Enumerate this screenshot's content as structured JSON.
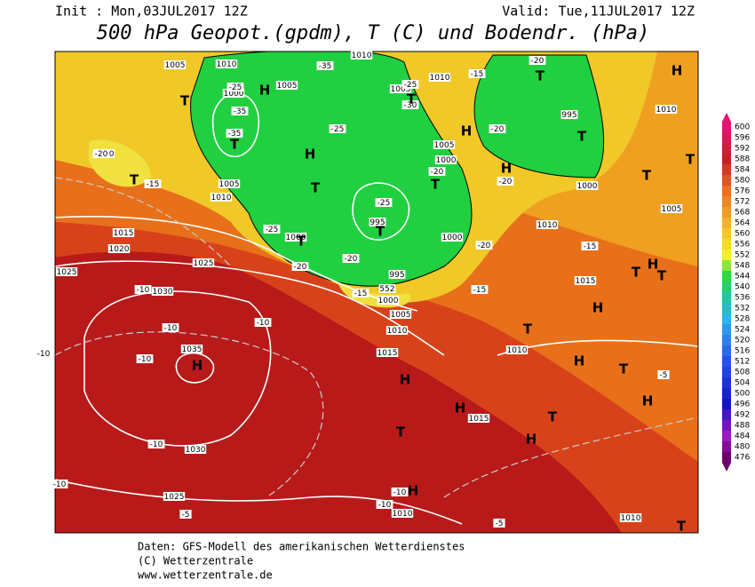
{
  "header": {
    "init": "Init : Mon,03JUL2017 12Z",
    "valid": "Valid: Tue,11JUL2017 12Z",
    "title": "500 hPa Geopot.(gpdm), T (C) und Bodendr. (hPa)"
  },
  "colorbar": {
    "labels": [
      600,
      596,
      592,
      588,
      584,
      580,
      576,
      572,
      568,
      564,
      560,
      556,
      552,
      548,
      544,
      540,
      536,
      532,
      528,
      524,
      520,
      516,
      512,
      508,
      504,
      500,
      496,
      492,
      488,
      484,
      480,
      476
    ]
  },
  "map_labels": {
    "pressure": [
      "1005",
      "1010",
      "1000",
      "1005",
      "1010",
      "1010",
      "1005",
      "995",
      "1010",
      "1010",
      "1005",
      "1010",
      "1005",
      "1000",
      "995",
      "1000",
      "1000",
      "1010",
      "1005",
      "1015",
      "1020",
      "1025",
      "1025",
      "1030",
      "995",
      "1000",
      "1005",
      "1010",
      "1015",
      "1015",
      "1010",
      "1035",
      "1030",
      "1015",
      "1025",
      "1010",
      "1010",
      "1000",
      "552"
    ],
    "temperature": [
      "-35",
      "-25",
      "-35",
      "-35",
      "-25",
      "-30",
      "-25",
      "-15",
      "-20",
      "-20",
      "-20",
      "-15",
      "-25",
      "-25",
      "-20",
      "-20",
      "-15",
      "-20",
      "-20",
      "-20",
      "-15",
      "-15",
      "-10",
      "-10",
      "-10",
      "-10",
      "-10",
      "-5",
      "-10",
      "-10",
      "-10",
      "-10",
      "-5",
      "-5"
    ],
    "symbols": [
      "H",
      "H",
      "T",
      "T",
      "T",
      "T",
      "H",
      "T",
      "T",
      "H",
      "H",
      "T",
      "T",
      "T",
      "T",
      "T",
      "T",
      "H",
      "T",
      "T",
      "H",
      "T",
      "H",
      "H",
      "T",
      "H",
      "H",
      "H",
      "T",
      "H",
      "T",
      "H",
      "T"
    ]
  },
  "footer": {
    "lines": [
      "Daten: GFS-Modell des amerikanischen Wetterdienstes",
      "(C) Wetterzentrale",
      "www.wetterzentrale.de"
    ]
  }
}
